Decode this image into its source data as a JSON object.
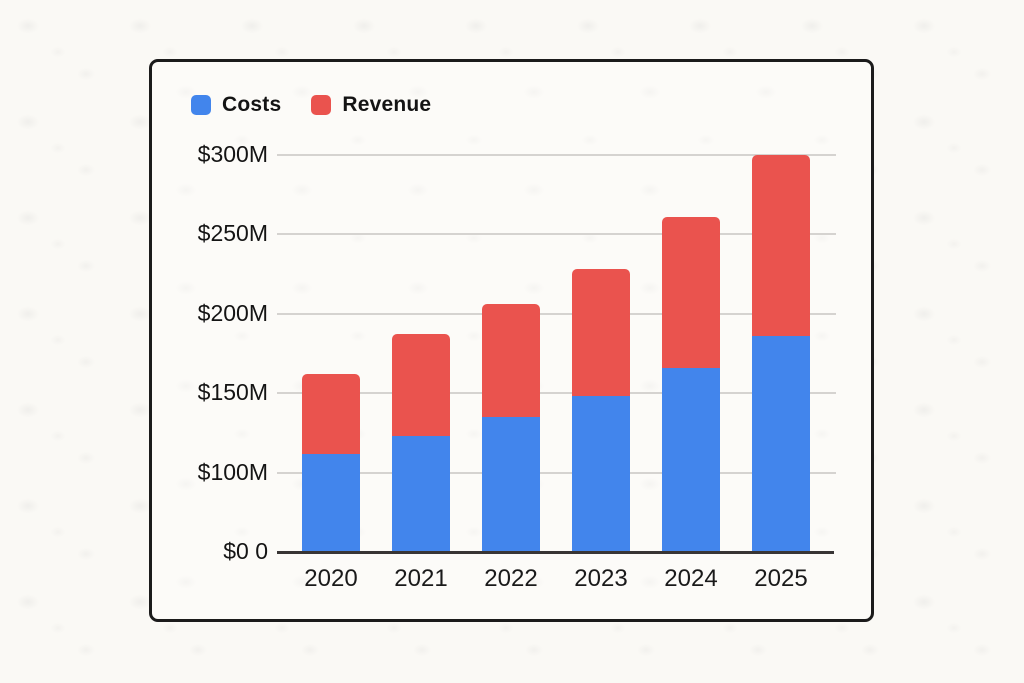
{
  "chart_data": {
    "type": "bar",
    "stacked": true,
    "title": "",
    "categories": [
      "2020",
      "2021",
      "2022",
      "2023",
      "2024",
      "2025"
    ],
    "series": [
      {
        "name": "Costs",
        "color": "#4285ec",
        "values": [
          112,
          123,
          135,
          148,
          166,
          186
        ]
      },
      {
        "name": "Revenue",
        "color": "#ea534e",
        "values": [
          50,
          64,
          71,
          80,
          95,
          114
        ]
      }
    ],
    "totals": [
      162,
      187,
      206,
      228,
      261,
      300
    ],
    "y_axis": {
      "tick_labels": [
        "$300M",
        "$250M",
        "$200M",
        "$150M",
        "$100M",
        "$0 0"
      ],
      "tick_values": [
        300,
        250,
        200,
        150,
        100,
        0
      ],
      "note": "tick lines evenly spaced on screen"
    },
    "x_axis": {
      "tick_labels": [
        "2020",
        "2021",
        "2022",
        "2023",
        "2024",
        "2025"
      ]
    },
    "legend": {
      "position": "top-left",
      "entries": [
        "Costs",
        "Revenue"
      ]
    },
    "grid": true,
    "colors": {
      "costs": "#4285ec",
      "revenue": "#ea534e",
      "gridline": "#d5d3d0",
      "axis_line": "#383535",
      "panel_border": "#1b1b1b",
      "panel_bg": "#fcfbf8",
      "page_bg": "#faf9f5",
      "text": "#141414"
    }
  }
}
